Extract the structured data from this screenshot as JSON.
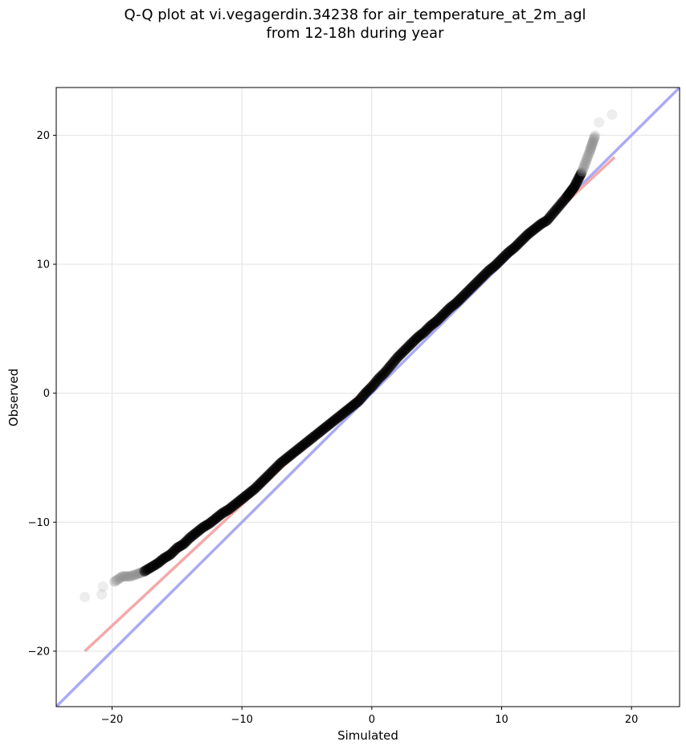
{
  "chart_data": {
    "type": "scatter",
    "title_line1": "Q-Q plot at vi.vegagerdin.34238 for air_temperature_at_2m_agl",
    "title_line2": "from 12-18h during year",
    "xlabel": "Simulated",
    "ylabel": "Observed",
    "xlim": [
      -24.3,
      23.7
    ],
    "ylim": [
      -24.3,
      23.7
    ],
    "xticks": [
      -20,
      -10,
      0,
      10,
      20
    ],
    "yticks": [
      -20,
      -10,
      0,
      10,
      20
    ],
    "xtick_labels": [
      "−20",
      "−10",
      "0",
      "10",
      "20"
    ],
    "ytick_labels": [
      "−20",
      "−10",
      "0",
      "10",
      "20"
    ],
    "grid": true,
    "quantiles": {
      "simulated": [
        -22.1,
        -20.8,
        -20.7,
        -19.8,
        -19.2,
        -18.6,
        -18.0,
        -17.5,
        -17.0,
        -16.5,
        -16.0,
        -15.5,
        -15.0,
        -14.5,
        -14.0,
        -13.5,
        -13.0,
        -12.5,
        -12.0,
        -11.5,
        -11.0,
        -10.5,
        -10.0,
        -9.5,
        -9.0,
        -8.5,
        -8.0,
        -7.5,
        -7.0,
        -6.5,
        -6.0,
        -5.5,
        -5.0,
        -4.5,
        -4.0,
        -3.5,
        -3.0,
        -2.5,
        -2.0,
        -1.5,
        -1.0,
        -0.5,
        0.0,
        0.5,
        1.0,
        1.5,
        2.0,
        2.5,
        3.0,
        3.5,
        4.0,
        4.5,
        5.0,
        5.5,
        6.0,
        6.5,
        7.0,
        7.5,
        8.0,
        8.5,
        9.0,
        9.5,
        10.0,
        10.5,
        11.0,
        11.5,
        12.0,
        12.5,
        13.0,
        13.5,
        14.0,
        14.5,
        15.0,
        15.3,
        15.6,
        15.9,
        16.2,
        16.5,
        16.8,
        17.0,
        17.2,
        17.5,
        18.5
      ],
      "observed": [
        -15.8,
        -15.6,
        -15.0,
        -14.6,
        -14.2,
        -14.2,
        -14.0,
        -13.8,
        -13.5,
        -13.2,
        -12.8,
        -12.5,
        -12.0,
        -11.7,
        -11.2,
        -10.8,
        -10.4,
        -10.1,
        -9.7,
        -9.3,
        -9.0,
        -8.6,
        -8.2,
        -7.8,
        -7.4,
        -6.9,
        -6.4,
        -5.9,
        -5.4,
        -5.0,
        -4.6,
        -4.2,
        -3.8,
        -3.4,
        -3.0,
        -2.6,
        -2.2,
        -1.8,
        -1.4,
        -1.0,
        -0.6,
        0.0,
        0.5,
        1.1,
        1.6,
        2.2,
        2.8,
        3.3,
        3.8,
        4.3,
        4.7,
        5.2,
        5.6,
        6.1,
        6.6,
        7.0,
        7.5,
        8.0,
        8.5,
        9.0,
        9.5,
        9.9,
        10.4,
        10.9,
        11.3,
        11.8,
        12.3,
        12.7,
        13.1,
        13.4,
        14.0,
        14.6,
        15.2,
        15.6,
        16.0,
        16.6,
        17.2,
        18.0,
        18.8,
        19.4,
        20.0,
        21.0,
        21.6
      ]
    },
    "reference_lines": [
      {
        "name": "1:1 line",
        "color": "#aaaaf5",
        "x": [
          -24.3,
          23.7
        ],
        "y": [
          -24.3,
          23.7
        ]
      },
      {
        "name": "linear fit",
        "color": "#f5a9a9",
        "x": [
          -22.1,
          18.7
        ],
        "y": [
          -20.0,
          18.3
        ]
      }
    ],
    "point_color": "#000000",
    "tail_point_color": "#888888"
  }
}
